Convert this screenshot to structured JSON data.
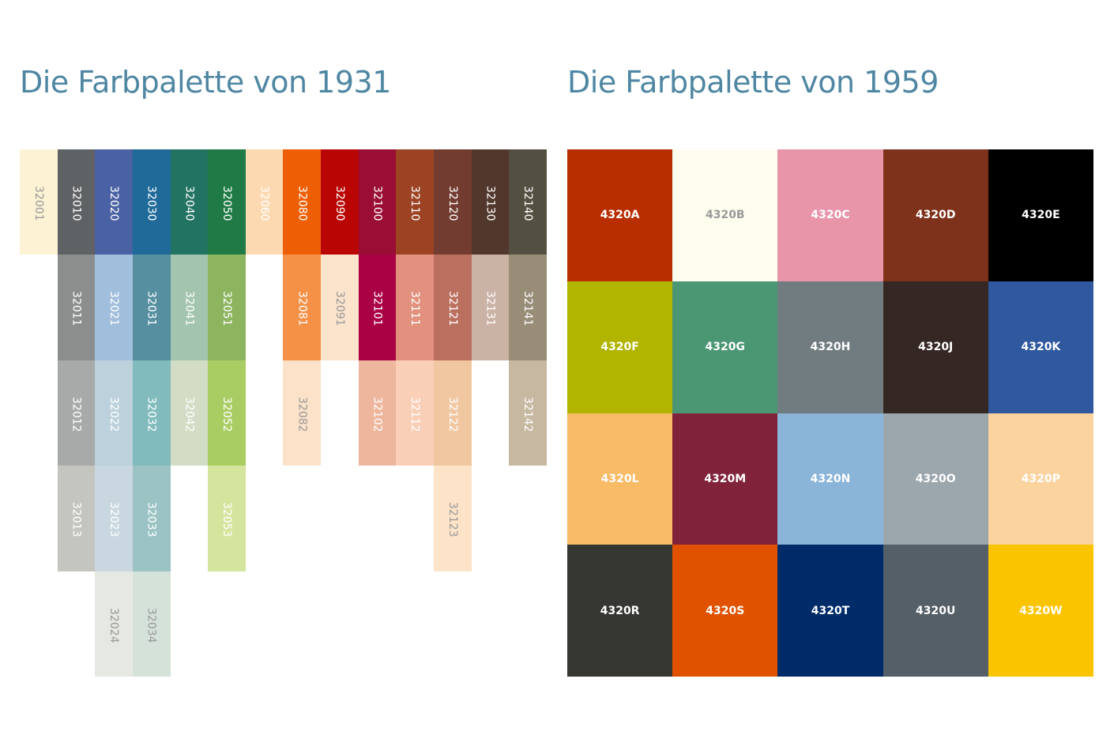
{
  "titles": {
    "left": "Die Farbpalette von 1931",
    "right": "Die Farbpalette von 1959"
  },
  "palette_1931": [
    [
      {
        "code": "32001",
        "color": "#fdf3d4",
        "text": "#9a9a9a"
      }
    ],
    [
      {
        "code": "32010",
        "color": "#5e6264",
        "text": "#fff"
      },
      {
        "code": "32011",
        "color": "#8c8d8d",
        "text": "#fff"
      },
      {
        "code": "32012",
        "color": "#a8aaa9",
        "text": "#fff"
      },
      {
        "code": "32013",
        "color": "#c4c5be",
        "text": "#fff"
      }
    ],
    [
      {
        "code": "32020",
        "color": "#4a62a3",
        "text": "#fff"
      },
      {
        "code": "32021",
        "color": "#a1bedc",
        "text": "#fff"
      },
      {
        "code": "32022",
        "color": "#bcd1dc",
        "text": "#fff"
      },
      {
        "code": "32023",
        "color": "#c9d7e0",
        "text": "#fff"
      },
      {
        "code": "32024",
        "color": "#e6e8e2",
        "text": "#9a9a9a"
      }
    ],
    [
      {
        "code": "32030",
        "color": "#1f6a99",
        "text": "#fff"
      },
      {
        "code": "32031",
        "color": "#558fa0",
        "text": "#fff"
      },
      {
        "code": "32032",
        "color": "#81bbbd",
        "text": "#fff"
      },
      {
        "code": "32033",
        "color": "#9bc3c3",
        "text": "#fff"
      },
      {
        "code": "32034",
        "color": "#d4e2da",
        "text": "#9a9a9a"
      }
    ],
    [
      {
        "code": "32040",
        "color": "#227362",
        "text": "#fff"
      },
      {
        "code": "32041",
        "color": "#a3c5af",
        "text": "#fff"
      },
      {
        "code": "32042",
        "color": "#d3ddc5",
        "text": "#fff"
      }
    ],
    [
      {
        "code": "32050",
        "color": "#1f7a45",
        "text": "#fff"
      },
      {
        "code": "32051",
        "color": "#8db560",
        "text": "#fff"
      },
      {
        "code": "32052",
        "color": "#a9cd63",
        "text": "#fff"
      },
      {
        "code": "32053",
        "color": "#d5e59e",
        "text": "#fff"
      }
    ],
    [
      {
        "code": "32060",
        "color": "#fcd9b0",
        "text": "#fff"
      }
    ],
    [
      {
        "code": "32080",
        "color": "#ee5e04",
        "text": "#fff"
      },
      {
        "code": "32081",
        "color": "#f49146",
        "text": "#fff"
      },
      {
        "code": "32082",
        "color": "#fbe2c8",
        "text": "#9a9a9a"
      }
    ],
    [
      {
        "code": "32090",
        "color": "#b90604",
        "text": "#fff"
      },
      {
        "code": "32091",
        "color": "#fbe3cc",
        "text": "#9a9a9a"
      }
    ],
    [
      {
        "code": "32100",
        "color": "#9a0e35",
        "text": "#fff"
      },
      {
        "code": "32101",
        "color": "#a90144",
        "text": "#fff"
      },
      {
        "code": "32102",
        "color": "#eeb69d",
        "text": "#fff"
      }
    ],
    [
      {
        "code": "32110",
        "color": "#9c4324",
        "text": "#fff"
      },
      {
        "code": "32111",
        "color": "#e2917e",
        "text": "#fff"
      },
      {
        "code": "32112",
        "color": "#f9cfb8",
        "text": "#fff"
      }
    ],
    [
      {
        "code": "32120",
        "color": "#733c31",
        "text": "#fff"
      },
      {
        "code": "32121",
        "color": "#bb6f5f",
        "text": "#fff"
      },
      {
        "code": "32122",
        "color": "#f1c7a2",
        "text": "#fff"
      },
      {
        "code": "32123",
        "color": "#fde3c7",
        "text": "#9a9a9a"
      }
    ],
    [
      {
        "code": "32130",
        "color": "#52372c",
        "text": "#fff"
      },
      {
        "code": "32131",
        "color": "#cab2a4",
        "text": "#fff"
      }
    ],
    [
      {
        "code": "32140",
        "color": "#545041",
        "text": "#fff"
      },
      {
        "code": "32141",
        "color": "#988d77",
        "text": "#fff"
      },
      {
        "code": "32142",
        "color": "#c7b8a2",
        "text": "#fff"
      }
    ]
  ],
  "palette_1959": [
    {
      "code": "4320A",
      "color": "#b82e00",
      "text": "#fff"
    },
    {
      "code": "4320B",
      "color": "#fffdee",
      "text": "#9a9a9a"
    },
    {
      "code": "4320C",
      "color": "#e895aa",
      "text": "#fff"
    },
    {
      "code": "4320D",
      "color": "#7f321b",
      "text": "#fff"
    },
    {
      "code": "4320E",
      "color": "#000000",
      "text": "#fff"
    },
    {
      "code": "4320F",
      "color": "#b1b500",
      "text": "#fff"
    },
    {
      "code": "4320G",
      "color": "#4b9774",
      "text": "#fff"
    },
    {
      "code": "4320H",
      "color": "#717c81",
      "text": "#fff"
    },
    {
      "code": "4320J",
      "color": "#352723",
      "text": "#fff"
    },
    {
      "code": "4320K",
      "color": "#2f589e",
      "text": "#fff"
    },
    {
      "code": "4320L",
      "color": "#f8bb66",
      "text": "#fff"
    },
    {
      "code": "4320M",
      "color": "#80233a",
      "text": "#fff"
    },
    {
      "code": "4320N",
      "color": "#8ab4d8",
      "text": "#fff"
    },
    {
      "code": "4320O",
      "color": "#9ba7ad",
      "text": "#fff"
    },
    {
      "code": "4320P",
      "color": "#fbd39f",
      "text": "#fff"
    },
    {
      "code": "4320R",
      "color": "#363632",
      "text": "#fff"
    },
    {
      "code": "4320S",
      "color": "#e05200",
      "text": "#fff"
    },
    {
      "code": "4320T",
      "color": "#002b69",
      "text": "#fff"
    },
    {
      "code": "4320U",
      "color": "#555f68",
      "text": "#fff"
    },
    {
      "code": "4320W",
      "color": "#fbc400",
      "text": "#fff"
    }
  ]
}
